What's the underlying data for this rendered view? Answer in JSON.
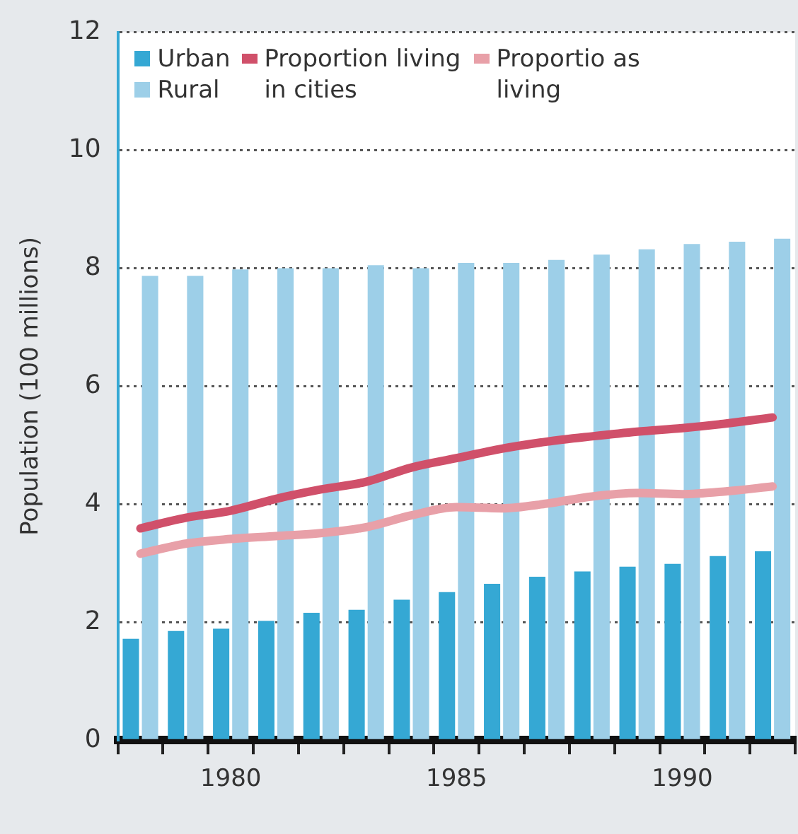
{
  "chart_data": {
    "type": "bar",
    "ylabel": "Population (100 millions)",
    "categories": [
      null,
      null,
      "1980",
      null,
      null,
      null,
      null,
      "1985",
      null,
      null,
      null,
      null,
      "1990",
      null,
      null
    ],
    "ylim": [
      0,
      12
    ],
    "yticks": [
      0,
      2,
      4,
      6,
      8,
      10,
      12
    ],
    "grid": "y",
    "legend": "top left",
    "marker": "none",
    "line_style": "solid",
    "series": [
      {
        "name": "Urban",
        "color": "#35a8d4",
        "values": [
          1.72,
          1.85,
          1.89,
          2.02,
          2.16,
          2.21,
          2.38,
          2.51,
          2.65,
          2.77,
          2.86,
          2.94,
          2.99,
          3.12,
          3.2
        ]
      },
      {
        "name": "Rural",
        "color": "#9dcfe8",
        "values": [
          7.87,
          7.87,
          7.98,
          8.0,
          8.0,
          8.05,
          8.0,
          8.09,
          8.09,
          8.14,
          8.23,
          8.32,
          8.41,
          8.45,
          8.5
        ]
      },
      {
        "name": "Proportion living in cities",
        "type": "line",
        "color": "#d0506a",
        "values": [
          3.59,
          3.77,
          3.89,
          4.09,
          4.25,
          4.38,
          4.62,
          4.78,
          4.94,
          5.06,
          5.15,
          5.23,
          5.29,
          5.37,
          5.47
        ]
      },
      {
        "name": "Proportio as living",
        "type": "line",
        "color": "#e8a0a8",
        "values": [
          3.16,
          3.33,
          3.41,
          3.46,
          3.51,
          3.61,
          3.81,
          3.95,
          3.93,
          4.01,
          4.13,
          4.19,
          4.17,
          4.22,
          4.3
        ]
      }
    ]
  }
}
